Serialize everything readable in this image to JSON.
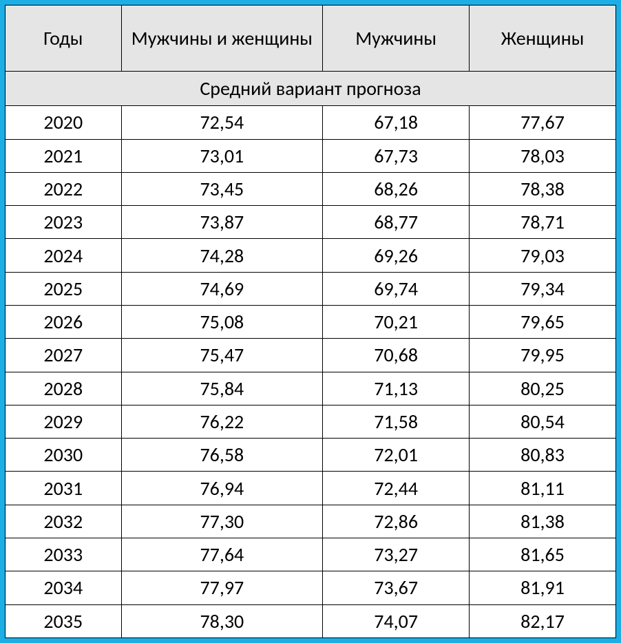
{
  "table": {
    "border_color": "#1daee5",
    "header_bg": "#e5e5e5",
    "cell_bg": "#ffffff",
    "text_color": "#000000",
    "font_size": 28,
    "columns": {
      "years": "Годы",
      "both": "Мужчины и женщины",
      "men": "Мужчины",
      "women": "Женщины"
    },
    "subheader": "Средний вариант прогноза",
    "rows": [
      {
        "year": "2020",
        "both": "72,54",
        "men": "67,18",
        "women": "77,67"
      },
      {
        "year": "2021",
        "both": "73,01",
        "men": "67,73",
        "women": "78,03"
      },
      {
        "year": "2022",
        "both": "73,45",
        "men": "68,26",
        "women": "78,38"
      },
      {
        "year": "2023",
        "both": "73,87",
        "men": "68,77",
        "women": "78,71"
      },
      {
        "year": "2024",
        "both": "74,28",
        "men": "69,26",
        "women": "79,03"
      },
      {
        "year": "2025",
        "both": "74,69",
        "men": "69,74",
        "women": "79,34"
      },
      {
        "year": "2026",
        "both": "75,08",
        "men": "70,21",
        "women": "79,65"
      },
      {
        "year": "2027",
        "both": "75,47",
        "men": "70,68",
        "women": "79,95"
      },
      {
        "year": "2028",
        "both": "75,84",
        "men": "71,13",
        "women": "80,25"
      },
      {
        "year": "2029",
        "both": "76,22",
        "men": "71,58",
        "women": "80,54"
      },
      {
        "year": "2030",
        "both": "76,58",
        "men": "72,01",
        "women": "80,83"
      },
      {
        "year": "2031",
        "both": "76,94",
        "men": "72,44",
        "women": "81,11"
      },
      {
        "year": "2032",
        "both": "77,30",
        "men": "72,86",
        "women": "81,38"
      },
      {
        "year": "2033",
        "both": "77,64",
        "men": "73,27",
        "women": "81,65"
      },
      {
        "year": "2034",
        "both": "77,97",
        "men": "73,67",
        "women": "81,91"
      },
      {
        "year": "2035",
        "both": "78,30",
        "men": "74,07",
        "women": "82,17"
      }
    ]
  }
}
